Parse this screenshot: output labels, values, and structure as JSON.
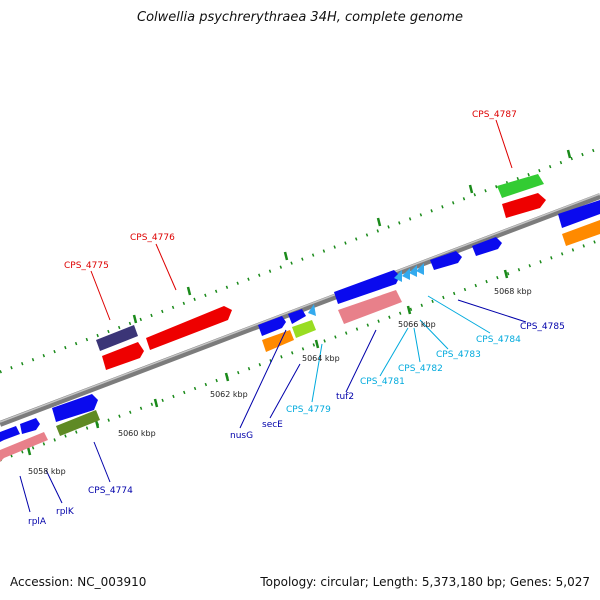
{
  "title": "Colwellia psychrerythraea 34H, complete genome",
  "footer": {
    "accession": "Accession: NC_003910",
    "summary": "Topology: circular; Length: 5,373,180 bp; Genes: 5,027"
  },
  "colors": {
    "backbone": "#7c7c7c",
    "tick": "#1a8a1a",
    "label_red": "#dd0000",
    "label_blue": "#0000aa",
    "label_cyan": "#00aadd"
  },
  "kbp_labels": [
    "5058 kbp",
    "5060 kbp",
    "5062 kbp",
    "5064 kbp",
    "5066 kbp",
    "5068 kbp"
  ],
  "gene_labels": {
    "rplA": "rplA",
    "rplK": "rplK",
    "cps4774": "CPS_4774",
    "cps4775": "CPS_4775",
    "cps4776": "CPS_4776",
    "nusG": "nusG",
    "secE": "secE",
    "cps4779": "CPS_4779",
    "tuf2": "tuf2",
    "cps4781": "CPS_4781",
    "cps4782": "CPS_4782",
    "cps4783": "CPS_4783",
    "cps4784": "CPS_4784",
    "cps4785": "CPS_4785",
    "cps4787": "CPS_4787"
  }
}
